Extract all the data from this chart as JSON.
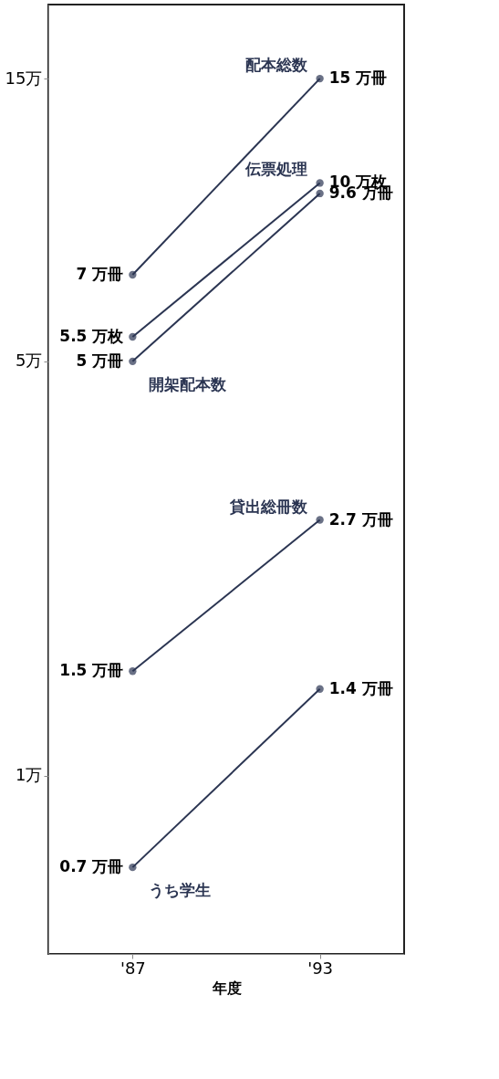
{
  "chart_data": {
    "type": "line",
    "categories": [
      "'87",
      "'93"
    ],
    "xlabel": "年度",
    "series": [
      {
        "name": "配本総数",
        "color": "#2b3552",
        "values": [
          7,
          15
        ],
        "value_labels": [
          "7 万冊",
          "15 万冊"
        ]
      },
      {
        "name": "伝票処理",
        "color": "#2b3552",
        "values": [
          5.5,
          10
        ],
        "value_labels": [
          "5.5 万枚",
          "10 万枚"
        ]
      },
      {
        "name": "開架配本数",
        "color": "#2b3552",
        "values": [
          5,
          9.6
        ],
        "value_labels": [
          "5 万冊",
          "9.6 万冊"
        ]
      },
      {
        "name": "貸出総冊数",
        "color": "#2b3552",
        "values": [
          1.5,
          2.7
        ],
        "value_labels": [
          "1.5 万冊",
          "2.7 万冊"
        ]
      },
      {
        "name": "うち学生",
        "color": "#2b3552",
        "values": [
          0.7,
          1.4
        ],
        "value_labels": [
          "0.7 万冊",
          "1.4 万冊"
        ]
      }
    ],
    "log": true,
    "ylim": [
      0.5,
      20
    ],
    "yticks": [
      {
        "value": 1,
        "label": "1万"
      },
      {
        "value": 5,
        "label": "5万"
      },
      {
        "value": 15,
        "label": "15万"
      }
    ],
    "marker": "circle",
    "line_style": "solid",
    "legend": false,
    "grid": false
  }
}
